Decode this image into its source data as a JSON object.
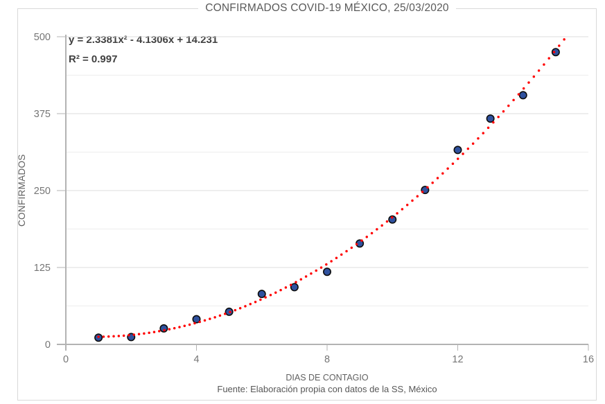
{
  "title": "CONFIRMADOS COVID-19 MÉXICO, 25/03/2020",
  "annotation": {
    "equation": "y = 2.3381x² - 4.1306x + 14.231",
    "r_squared": "R² = 0.997"
  },
  "axes": {
    "x_label": "DIAS DE CONTAGIO",
    "y_label": "CONFIRMADOS"
  },
  "source": "Fuente: Elaboración propia con datos de la SS, México",
  "chart_data": {
    "type": "scatter",
    "title": "CONFIRMADOS COVID-19 MÉXICO, 25/03/2020",
    "xlabel": "DIAS DE CONTAGIO",
    "ylabel": "CONFIRMADOS",
    "x": [
      1,
      2,
      3,
      4,
      5,
      6,
      7,
      8,
      9,
      10,
      11,
      12,
      13,
      14,
      15
    ],
    "y": [
      11,
      12,
      26,
      41,
      53,
      82,
      93,
      118,
      164,
      203,
      251,
      316,
      367,
      405,
      475
    ],
    "xlim": [
      0,
      16
    ],
    "ylim": [
      0,
      500
    ],
    "x_ticks": [
      0,
      4,
      8,
      12,
      16
    ],
    "y_ticks": [
      0,
      125,
      250,
      375,
      500
    ],
    "y_minor_gridlines": [
      62.5,
      187.5,
      312.5,
      437.5
    ],
    "grid": "horizontal",
    "legend": "none",
    "trendline": {
      "type": "polynomial",
      "degree": 2,
      "coefficients": {
        "a": 2.3381,
        "b": -4.1306,
        "c": 14.231
      },
      "equation": "y = 2.3381x² - 4.1306x + 14.231",
      "r2": 0.997,
      "style": "dotted",
      "color": "#ff0000",
      "x_range": [
        1,
        15.35
      ]
    }
  },
  "colors": {
    "background": "#ffffff",
    "frame_border": "#d9d9d9",
    "grid_major": "#dcdcdc",
    "grid_minor": "#ededed",
    "axis_line": "#b3b3b3",
    "tick_label": "#757575",
    "title_text": "#595959",
    "annotation_text": "#414141",
    "trendline": "#ff0000",
    "marker_fill": "#2f519e",
    "marker_stroke": "#0d0d0d"
  }
}
